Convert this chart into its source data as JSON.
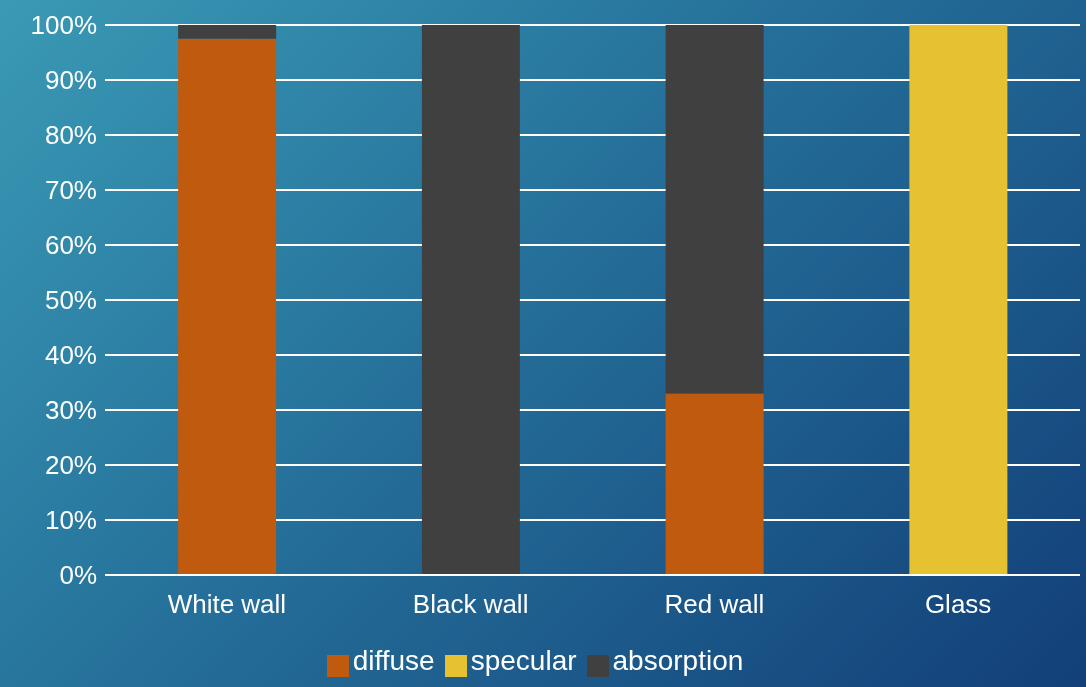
{
  "chart_data": {
    "type": "bar",
    "stacked": true,
    "categories": [
      "White wall",
      "Black wall",
      "Red wall",
      "Glass"
    ],
    "series": [
      {
        "name": "diffuse",
        "color": "#c05a0e",
        "values": [
          97.5,
          0,
          33,
          0
        ]
      },
      {
        "name": "specular",
        "color": "#e6c233",
        "values": [
          0,
          0,
          0,
          100
        ]
      },
      {
        "name": "absorption",
        "color": "#404040",
        "values": [
          2.5,
          100,
          67,
          0
        ]
      }
    ],
    "ylim": [
      0,
      100
    ],
    "yticks": [
      {
        "value": 0,
        "label": "0%"
      },
      {
        "value": 10,
        "label": "10%"
      },
      {
        "value": 20,
        "label": "20%"
      },
      {
        "value": 30,
        "label": "30%"
      },
      {
        "value": 40,
        "label": "40%"
      },
      {
        "value": 50,
        "label": "50%"
      },
      {
        "value": 60,
        "label": "60%"
      },
      {
        "value": 70,
        "label": "70%"
      },
      {
        "value": 80,
        "label": "80%"
      },
      {
        "value": 90,
        "label": "90%"
      },
      {
        "value": 100,
        "label": "100%"
      }
    ],
    "grid": "y",
    "legend": "bottom"
  }
}
